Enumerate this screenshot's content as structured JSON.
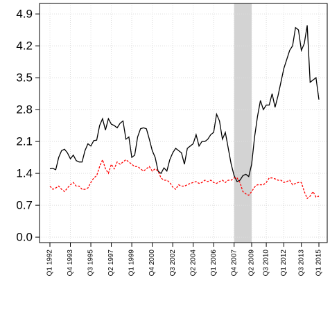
{
  "chart_data": {
    "type": "line",
    "x": [
      "Q1 1992",
      "Q2 1992",
      "Q3 1992",
      "Q4 1992",
      "Q1 1993",
      "Q2 1993",
      "Q3 1993",
      "Q4 1993",
      "Q1 1994",
      "Q2 1994",
      "Q3 1994",
      "Q4 1994",
      "Q1 1995",
      "Q2 1995",
      "Q3 1995",
      "Q4 1995",
      "Q1 1996",
      "Q2 1996",
      "Q3 1996",
      "Q4 1996",
      "Q1 1997",
      "Q2 1997",
      "Q3 1997",
      "Q4 1997",
      "Q1 1998",
      "Q2 1998",
      "Q3 1998",
      "Q4 1998",
      "Q1 1999",
      "Q2 1999",
      "Q3 1999",
      "Q4 1999",
      "Q1 2000",
      "Q2 2000",
      "Q3 2000",
      "Q4 2000",
      "Q1 2001",
      "Q2 2001",
      "Q3 2001",
      "Q4 2001",
      "Q1 2002",
      "Q2 2002",
      "Q3 2002",
      "Q4 2002",
      "Q1 2003",
      "Q2 2003",
      "Q3 2003",
      "Q4 2003",
      "Q1 2004",
      "Q2 2004",
      "Q3 2004",
      "Q4 2004",
      "Q1 2005",
      "Q2 2005",
      "Q3 2005",
      "Q4 2005",
      "Q1 2006",
      "Q2 2006",
      "Q3 2006",
      "Q4 2006",
      "Q1 2007",
      "Q2 2007",
      "Q3 2007",
      "Q4 2007",
      "Q1 2008",
      "Q2 2008",
      "Q3 2008",
      "Q4 2008",
      "Q1 2009",
      "Q2 2009",
      "Q3 2009",
      "Q4 2009",
      "Q1 2010",
      "Q2 2010",
      "Q3 2010",
      "Q4 2010",
      "Q1 2011",
      "Q2 2011",
      "Q3 2011",
      "Q4 2011",
      "Q1 2012",
      "Q2 2012",
      "Q3 2012",
      "Q4 2012",
      "Q1 2013",
      "Q2 2013",
      "Q3 2013",
      "Q4 2013",
      "Q1 2014",
      "Q2 2014",
      "Q3 2014",
      "Q4 2014",
      "Q1 2015"
    ],
    "series": [
      {
        "color": "#000000",
        "dash": false,
        "values": [
          1.5,
          1.51,
          1.48,
          1.75,
          1.9,
          1.93,
          1.85,
          1.72,
          1.8,
          1.68,
          1.65,
          1.65,
          1.9,
          2.05,
          2.0,
          2.12,
          2.13,
          2.45,
          2.6,
          2.35,
          2.6,
          2.48,
          2.45,
          2.4,
          2.5,
          2.55,
          2.15,
          2.2,
          1.75,
          1.8,
          2.2,
          2.38,
          2.4,
          2.38,
          2.15,
          1.9,
          1.75,
          1.45,
          1.4,
          1.52,
          1.45,
          1.7,
          1.85,
          1.95,
          1.9,
          1.85,
          1.6,
          1.95,
          2.0,
          2.05,
          2.25,
          2.0,
          2.1,
          2.1,
          2.15,
          2.25,
          2.3,
          2.7,
          2.55,
          2.15,
          2.3,
          1.95,
          1.6,
          1.35,
          1.22,
          1.25,
          1.35,
          1.38,
          1.33,
          1.6,
          2.2,
          2.65,
          3.0,
          2.8,
          2.9,
          2.9,
          3.15,
          2.85,
          3.1,
          3.4,
          3.7,
          3.9,
          4.1,
          4.2,
          4.6,
          4.55,
          4.1,
          4.25,
          4.65,
          3.4,
          3.45,
          3.5,
          3.02
        ]
      },
      {
        "color": "#ff0000",
        "dash": true,
        "values": [
          1.12,
          1.05,
          1.08,
          1.12,
          1.05,
          1.0,
          1.08,
          1.15,
          1.2,
          1.12,
          1.12,
          1.05,
          1.05,
          1.08,
          1.2,
          1.3,
          1.35,
          1.55,
          1.7,
          1.5,
          1.4,
          1.6,
          1.5,
          1.65,
          1.6,
          1.65,
          1.7,
          1.65,
          1.6,
          1.55,
          1.55,
          1.5,
          1.45,
          1.5,
          1.55,
          1.45,
          1.5,
          1.45,
          1.3,
          1.25,
          1.25,
          1.2,
          1.1,
          1.05,
          1.15,
          1.12,
          1.12,
          1.15,
          1.18,
          1.2,
          1.22,
          1.18,
          1.2,
          1.25,
          1.22,
          1.25,
          1.2,
          1.18,
          1.22,
          1.25,
          1.2,
          1.25,
          1.25,
          1.3,
          1.3,
          1.2,
          1.0,
          0.95,
          0.92,
          1.0,
          1.1,
          1.15,
          1.15,
          1.15,
          1.2,
          1.3,
          1.3,
          1.28,
          1.25,
          1.25,
          1.2,
          1.22,
          1.25,
          1.15,
          1.18,
          1.2,
          1.2,
          1.0,
          0.85,
          0.9,
          1.0,
          0.88,
          0.9
        ]
      }
    ],
    "xticks": [
      "Q1 1992",
      "Q4 1993",
      "Q3 1995",
      "Q2 1997",
      "Q1 1999",
      "Q4 2000",
      "Q3 2002",
      "Q2 2004",
      "Q1 2006",
      "Q4 2007",
      "Q2 2009",
      "Q3 2010",
      "Q1 2012",
      "Q3 2013",
      "Q1 2015"
    ],
    "shade": [
      "Q4 2007",
      "Q2 2009"
    ],
    "shade_color": "#d3d3d3",
    "ylim": [
      -0.12,
      5.13
    ],
    "yticks": [
      {
        "value": 0,
        "label": "0.0"
      },
      0.7,
      1.4,
      2.1,
      2.8,
      3.5,
      4.2,
      4.9
    ],
    "grid": true
  }
}
